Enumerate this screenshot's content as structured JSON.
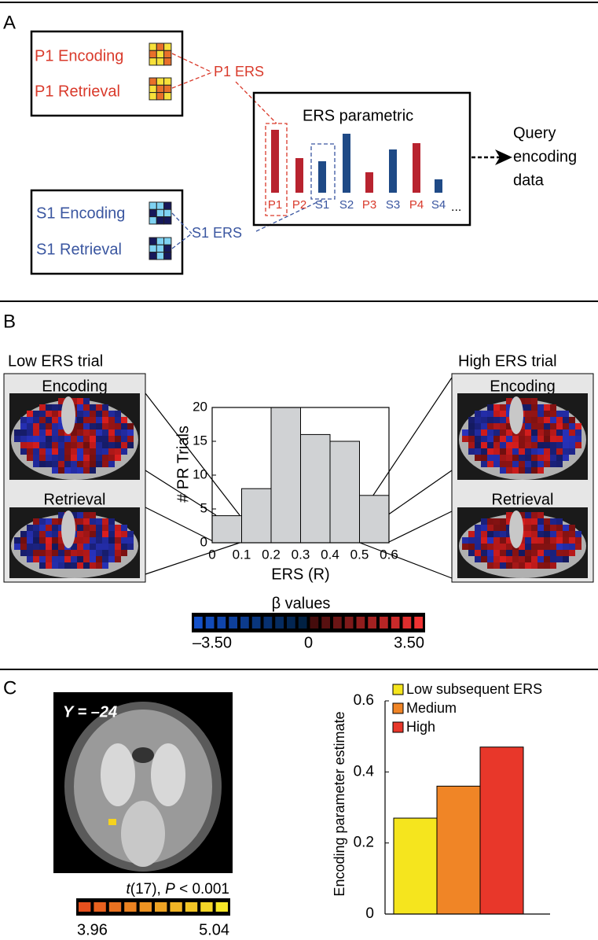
{
  "panel_labels": [
    "A",
    "B",
    "C"
  ],
  "panel_a": {
    "p1_encoding": "P1 Encoding",
    "p1_retrieval": "P1 Retrieval",
    "p1_ers": "P1 ERS",
    "s1_encoding": "S1 Encoding",
    "s1_retrieval": "S1 Retrieval",
    "s1_ers": "S1 ERS",
    "ellipsis": "...",
    "query": [
      "Query",
      "encoding",
      "data"
    ]
  },
  "panel_b": {
    "low_title": "Low ERS trial",
    "high_title": "High ERS trial",
    "encoding": "Encoding",
    "retrieval": "Retrieval",
    "colorbar": {
      "title": "β values",
      "lim": [
        -3.5,
        3.5
      ],
      "ticks": [
        {
          "value": -3.5,
          "label": "–3.50"
        },
        0,
        {
          "value": 3.5,
          "label": "3.50"
        }
      ]
    }
  },
  "panel_c": {
    "slice_label": "Y = –24",
    "stat": [
      "t",
      "(17), ",
      "P",
      " < 0.001"
    ],
    "colorbar": {
      "lim": [
        3.96,
        5.04
      ],
      "ticks": [
        3.96,
        5.04
      ]
    }
  },
  "chart_data": [
    {
      "type": "bar",
      "title": "ERS parametric",
      "categories": [
        "P1",
        "P2",
        "S1",
        "S2",
        "P3",
        "S3",
        "P4",
        "S4"
      ],
      "values": [
        80,
        44,
        40,
        75,
        26,
        55,
        63,
        17
      ],
      "colors": [
        "#b8232f",
        "#b8232f",
        "#1f4a86",
        "#1f4a86",
        "#b8232f",
        "#1f4a86",
        "#b8232f",
        "#1f4a86"
      ],
      "label_colors": [
        "#d93a2b",
        "#d93a2b",
        "#3a56a0",
        "#3a56a0",
        "#d93a2b",
        "#3a56a0",
        "#d93a2b",
        "#3a56a0"
      ]
    },
    {
      "type": "histogram",
      "xlabel": "ERS (R)",
      "ylabel": "# PR Trials",
      "bins": [
        0,
        0.1,
        0.2,
        0.3,
        0.4,
        0.5,
        0.6
      ],
      "values": [
        4,
        8,
        20,
        16,
        15,
        7
      ],
      "color": "#d0d2d4",
      "xlim": [
        0,
        0.6
      ],
      "xticks": [
        0,
        0.1,
        0.2,
        0.3,
        0.4,
        0.5,
        0.6
      ],
      "ylim": [
        0,
        20
      ],
      "yticks": [
        0,
        5,
        10,
        15,
        20
      ]
    },
    {
      "type": "bar",
      "ylabel": "Encoding parameter estimate",
      "legend": "upper left",
      "series": [
        {
          "name": "Low subsequent ERS",
          "color": "#f5e51e",
          "values": [
            0.27
          ]
        },
        {
          "name": "Medium",
          "color": "#f08526",
          "values": [
            0.36
          ]
        },
        {
          "name": "High",
          "color": "#e8372a",
          "values": [
            0.47
          ]
        }
      ],
      "ylim": [
        0,
        0.6
      ],
      "yticks": [
        0,
        0.2,
        0.4,
        0.6
      ]
    }
  ]
}
